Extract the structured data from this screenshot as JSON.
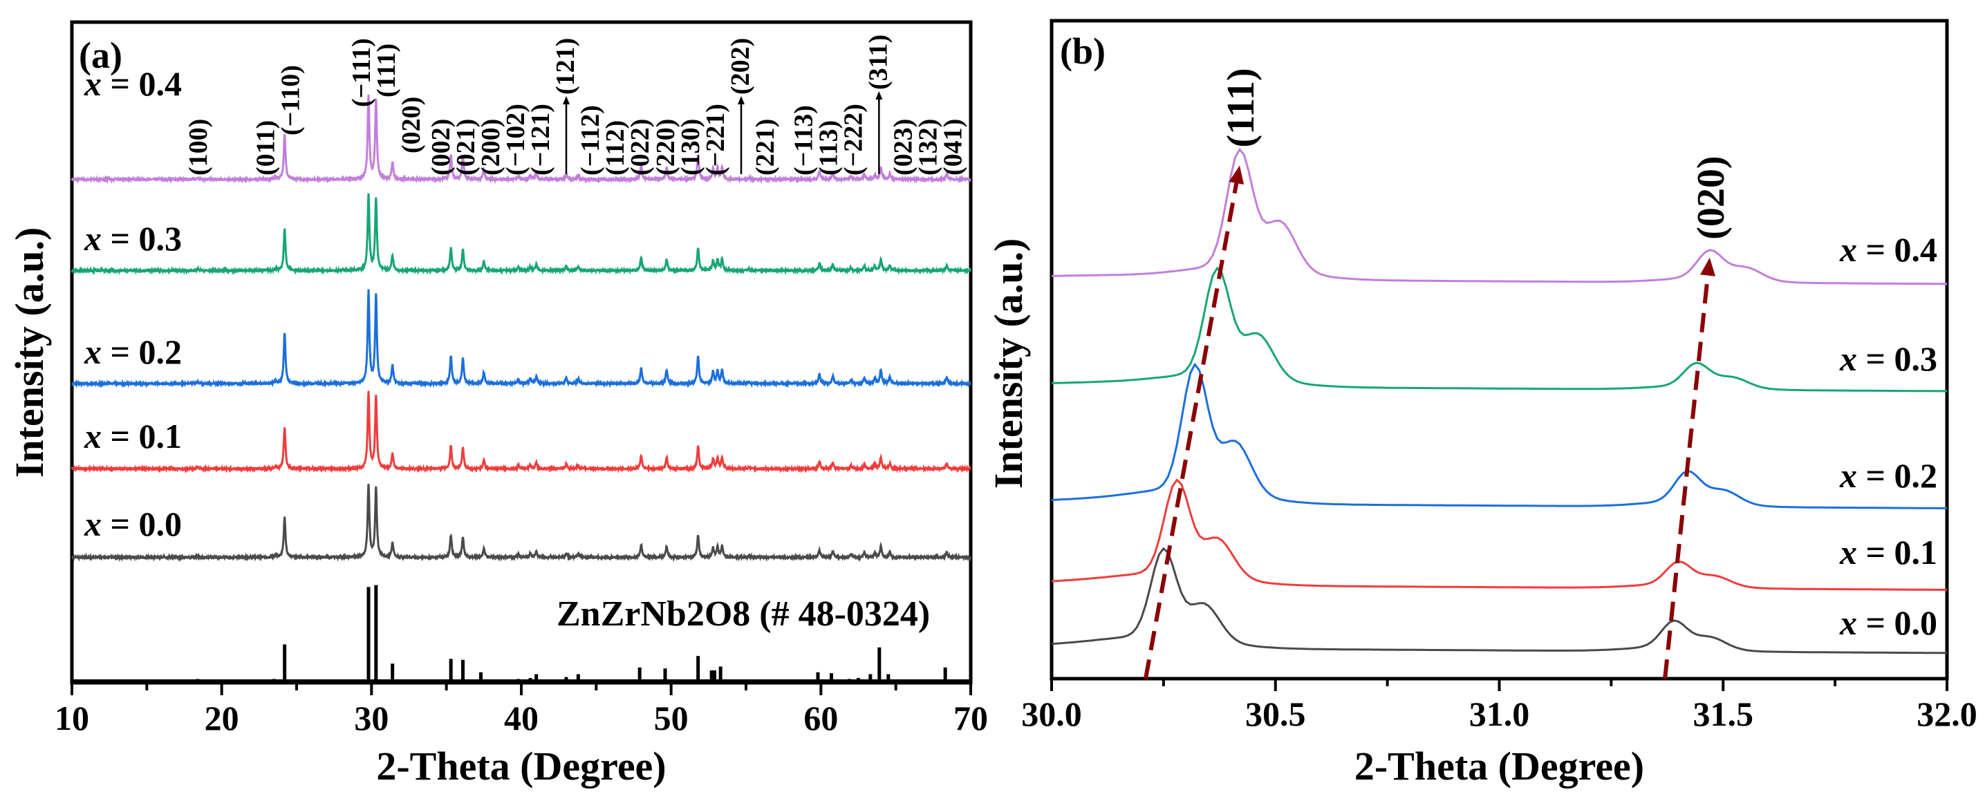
{
  "chart_data": [
    {
      "type": "line",
      "panel_label": "(a)",
      "xlabel": "2-Theta (Degree)",
      "ylabel": "Intensity (a.u.)",
      "xlim": [
        10,
        70
      ],
      "ylim": [
        0,
        100
      ],
      "xticks": [
        10,
        20,
        30,
        40,
        50,
        60,
        70
      ],
      "peak_positions": [
        18.4,
        23.6,
        24.2,
        29.8,
        30.3,
        31.4,
        35.3,
        36.1,
        37.5,
        39.8,
        40.6,
        41.0,
        43.0,
        43.8,
        48.0,
        49.7,
        51.8,
        52.8,
        53.1,
        53.4,
        55.2,
        59.9,
        60.8,
        62.0,
        62.9,
        63.6,
        64.0,
        64.6,
        68.4
      ],
      "relative_intensities": [
        0.02,
        0.03,
        0.55,
        1.0,
        0.95,
        0.2,
        0.3,
        0.28,
        0.12,
        0.04,
        0.05,
        0.08,
        0.06,
        0.05,
        0.17,
        0.15,
        0.3,
        0.13,
        0.14,
        0.15,
        0.02,
        0.1,
        0.08,
        0.04,
        0.06,
        0.06,
        0.15,
        0.07,
        0.07
      ],
      "series": [
        {
          "name": "x = 0.4",
          "color": "#c27fda",
          "offset": 76.2,
          "max_height": 12.5
        },
        {
          "name": "x = 0.3",
          "color": "#17a673",
          "offset": 62.4,
          "max_height": 11.5
        },
        {
          "name": "x = 0.2",
          "color": "#1a6fdc",
          "offset": 45.3,
          "max_height": 14.0
        },
        {
          "name": "x = 0.1",
          "color": "#f03c3c",
          "offset": 32.4,
          "max_height": 11.5
        },
        {
          "name": "x = 0.0",
          "color": "#4a4a4a",
          "offset": 19.0,
          "max_height": 11.0
        }
      ],
      "reference": {
        "label": "ZnZrNb2O8 (# 48-0324)",
        "color": "#000000",
        "sticks": [
          [
            18.4,
            0.04
          ],
          [
            23.5,
            0.04
          ],
          [
            24.2,
            0.4
          ],
          [
            29.8,
            1.0
          ],
          [
            30.3,
            1.02
          ],
          [
            31.4,
            0.2
          ],
          [
            35.3,
            0.25
          ],
          [
            36.1,
            0.24
          ],
          [
            37.3,
            0.11
          ],
          [
            39.8,
            0.04
          ],
          [
            40.6,
            0.05
          ],
          [
            41.0,
            0.09
          ],
          [
            43.0,
            0.06
          ],
          [
            43.8,
            0.09
          ],
          [
            47.9,
            0.16
          ],
          [
            49.6,
            0.15
          ],
          [
            51.8,
            0.28
          ],
          [
            52.7,
            0.13
          ],
          [
            52.9,
            0.13
          ],
          [
            53.3,
            0.17
          ],
          [
            59.8,
            0.11
          ],
          [
            60.7,
            0.1
          ],
          [
            61.9,
            0.04
          ],
          [
            62.5,
            0.05
          ],
          [
            63.3,
            0.09
          ],
          [
            63.9,
            0.37
          ],
          [
            64.5,
            0.09
          ],
          [
            68.3,
            0.16
          ]
        ],
        "max_height": 14.5
      },
      "hkl_labels": [
        {
          "text": "(100)",
          "x": 18.4
        },
        {
          "text": "(011)",
          "x": 22.9
        },
        {
          "text": "(−110)",
          "x": 24.5
        },
        {
          "text": "(−111)",
          "x": 29.3
        },
        {
          "text": "(111)",
          "x": 30.6
        },
        {
          "text": "(020)",
          "x": 31.7
        },
        {
          "text": "(002)",
          "x": 34.6
        },
        {
          "text": "(021)",
          "x": 36.0
        },
        {
          "text": "(200)",
          "x": 37.3
        },
        {
          "text": "(−102)",
          "x": 38.9
        },
        {
          "text": "(−121)",
          "x": 40.5
        },
        {
          "text": "(121)",
          "x": 41.8
        },
        {
          "text": "(−112)",
          "x": 42.4
        },
        {
          "text": "(112)",
          "x": 44.1
        },
        {
          "text": "(022)",
          "x": 47.7
        },
        {
          "text": "(220)",
          "x": 49.6
        },
        {
          "text": "(130)",
          "x": 51.1
        },
        {
          "text": "(−221)",
          "x": 52.6
        },
        {
          "text": "(202)",
          "x": 53.9
        },
        {
          "text": "(221)",
          "x": 54.5
        },
        {
          "text": "(−113)",
          "x": 58.8
        },
        {
          "text": "(113)",
          "x": 60.3
        },
        {
          "text": "(−222)",
          "x": 61.8
        },
        {
          "text": "(311)",
          "x": 63.3
        },
        {
          "text": "(023)",
          "x": 64.0
        },
        {
          "text": "(132)",
          "x": 65.5
        },
        {
          "text": "(041)",
          "x": 68.7
        }
      ]
    },
    {
      "type": "line",
      "panel_label": "(b)",
      "xlabel": "2-Theta (Degree)",
      "ylabel": "Intensity (a.u.)",
      "xlim": [
        30.0,
        32.0
      ],
      "ylim": [
        0,
        100
      ],
      "xticks": [
        "30.0",
        "30.5",
        "31.0",
        "31.5",
        "32.0"
      ],
      "series": [
        {
          "name": "x = 0.4",
          "color": "#c27fda",
          "offset": 60.8,
          "peak_111": 30.42,
          "height_111": 17.4,
          "peak_020": 31.47,
          "height_020": 4.0
        },
        {
          "name": "x = 0.3",
          "color": "#17a673",
          "offset": 44.5,
          "peak_111": 30.37,
          "height_111": 15.8,
          "peak_020": 31.44,
          "height_020": 3.3
        },
        {
          "name": "x = 0.2",
          "color": "#1a6fdc",
          "offset": 26.7,
          "peak_111": 30.32,
          "height_111": 18.5,
          "peak_020": 31.42,
          "height_020": 4.4
        },
        {
          "name": "x = 0.1",
          "color": "#f03c3c",
          "offset": 14.3,
          "peak_111": 30.28,
          "height_111": 13.9,
          "peak_020": 31.4,
          "height_020": 3.3
        },
        {
          "name": "x = 0.0",
          "color": "#4a4a4a",
          "offset": 4.7,
          "peak_111": 30.25,
          "height_111": 13.1,
          "peak_020": 31.39,
          "height_020": 3.8
        }
      ],
      "annotations": [
        {
          "text": "(111)",
          "arrow_from": [
            30.21,
            0
          ],
          "arrow_to": [
            30.42,
            78
          ]
        },
        {
          "text": "(020)",
          "arrow_from": [
            31.37,
            0
          ],
          "arrow_to": [
            31.47,
            64
          ]
        }
      ],
      "arrow_color": "#8b0000"
    }
  ]
}
